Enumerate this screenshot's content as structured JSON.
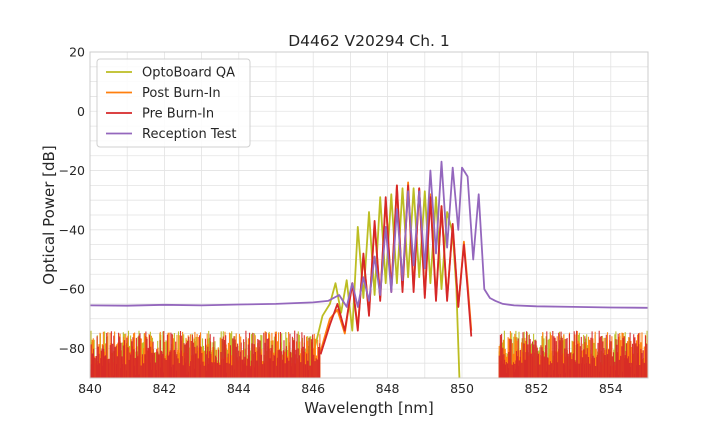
{
  "chart_data": {
    "type": "line",
    "title": "D4462 V20294 Ch. 1",
    "xlabel": "Wavelength [nm]",
    "ylabel": "Optical Power [dB]",
    "xlim": [
      840,
      855
    ],
    "ylim": [
      -90,
      20
    ],
    "xticks": [
      840,
      842,
      844,
      846,
      848,
      850,
      852,
      854
    ],
    "yticks": [
      20,
      0,
      -20,
      -40,
      -60,
      -80
    ],
    "ytick_labels": [
      "20",
      "0",
      "−20",
      "−40",
      "−60",
      "−80"
    ],
    "grid": true,
    "legend_position": "top-left",
    "series": [
      {
        "name": "OptoBoard QA",
        "color": "#bcbd22",
        "noise_range": [
          846.0,
          846.9,
          849.9,
          851.0
        ],
        "x": [
          846.0,
          846.25,
          846.45,
          846.6,
          846.75,
          846.9,
          847.05,
          847.2,
          847.35,
          847.5,
          847.65,
          847.8,
          847.95,
          848.1,
          848.25,
          848.4,
          848.55,
          848.7,
          848.85,
          849.0,
          849.15,
          849.3,
          849.45,
          849.6,
          849.75,
          849.85,
          849.93
        ],
        "y": [
          -82,
          -69,
          -65,
          -58,
          -68,
          -57,
          -74,
          -39,
          -63,
          -34,
          -62,
          -29,
          -58,
          -28,
          -58,
          -26,
          -56,
          -26,
          -56,
          -27,
          -58,
          -29,
          -60,
          -34,
          -41,
          -60,
          -90
        ]
      },
      {
        "name": "Post Burn-In",
        "color": "#ff7f0e",
        "noise_range": [
          846.2,
          846.65,
          850.3,
          851.0
        ],
        "x": [
          846.2,
          846.45,
          846.65,
          846.85,
          847.05,
          847.2,
          847.35,
          847.5,
          847.65,
          847.8,
          847.95,
          848.1,
          848.25,
          848.4,
          848.55,
          848.7,
          848.85,
          849.0,
          849.15,
          849.3,
          849.45,
          849.6,
          849.75,
          849.9,
          850.05,
          850.15,
          850.25
        ],
        "y": [
          -81,
          -70,
          -67,
          -75,
          -58,
          -73,
          -49,
          -68,
          -38,
          -63,
          -30,
          -60,
          -25,
          -60,
          -24,
          -60,
          -26,
          -62,
          -28,
          -63,
          -32,
          -63,
          -39,
          -66,
          -44,
          -58,
          -74
        ]
      },
      {
        "name": "Pre Burn-In",
        "color": "#d62728",
        "noise_range": [
          846.2,
          846.65,
          850.3,
          851.0
        ],
        "x": [
          846.2,
          846.45,
          846.65,
          846.85,
          847.05,
          847.2,
          847.35,
          847.5,
          847.65,
          847.8,
          847.95,
          848.1,
          848.25,
          848.4,
          848.55,
          848.7,
          848.85,
          849.0,
          849.15,
          849.3,
          849.45,
          849.6,
          849.75,
          849.9,
          850.05,
          850.15,
          850.25
        ],
        "y": [
          -82,
          -72,
          -65,
          -74,
          -58,
          -74,
          -48,
          -69,
          -37,
          -64,
          -29,
          -61,
          -25,
          -61,
          -25,
          -61,
          -26,
          -63,
          -29,
          -64,
          -32,
          -64,
          -38,
          -66,
          -45,
          -60,
          -76
        ]
      },
      {
        "name": "Reception Test",
        "color": "#9467bd",
        "x": [
          840,
          841,
          842,
          843,
          844,
          845,
          846,
          846.4,
          846.7,
          846.9,
          847.05,
          847.2,
          847.35,
          847.5,
          847.65,
          847.8,
          847.95,
          848.1,
          848.25,
          848.4,
          848.55,
          848.7,
          848.85,
          849.0,
          849.15,
          849.3,
          849.45,
          849.6,
          849.75,
          849.9,
          850.0,
          850.15,
          850.3,
          850.45,
          850.6,
          850.75,
          850.9,
          851.1,
          851.4,
          852,
          853,
          854,
          855
        ],
        "y": [
          -65.5,
          -65.6,
          -65.3,
          -65.5,
          -65.2,
          -65.0,
          -64.5,
          -64,
          -62,
          -66,
          -58,
          -66,
          -56,
          -64,
          -49,
          -62,
          -39,
          -61,
          -33,
          -57,
          -27,
          -52,
          -27,
          -53,
          -20,
          -48,
          -17,
          -46,
          -19,
          -40,
          -19,
          -22,
          -50,
          -28,
          -60,
          -63,
          -64,
          -65,
          -65.5,
          -65.8,
          -66,
          -66.2,
          -66.3
        ]
      }
    ]
  }
}
